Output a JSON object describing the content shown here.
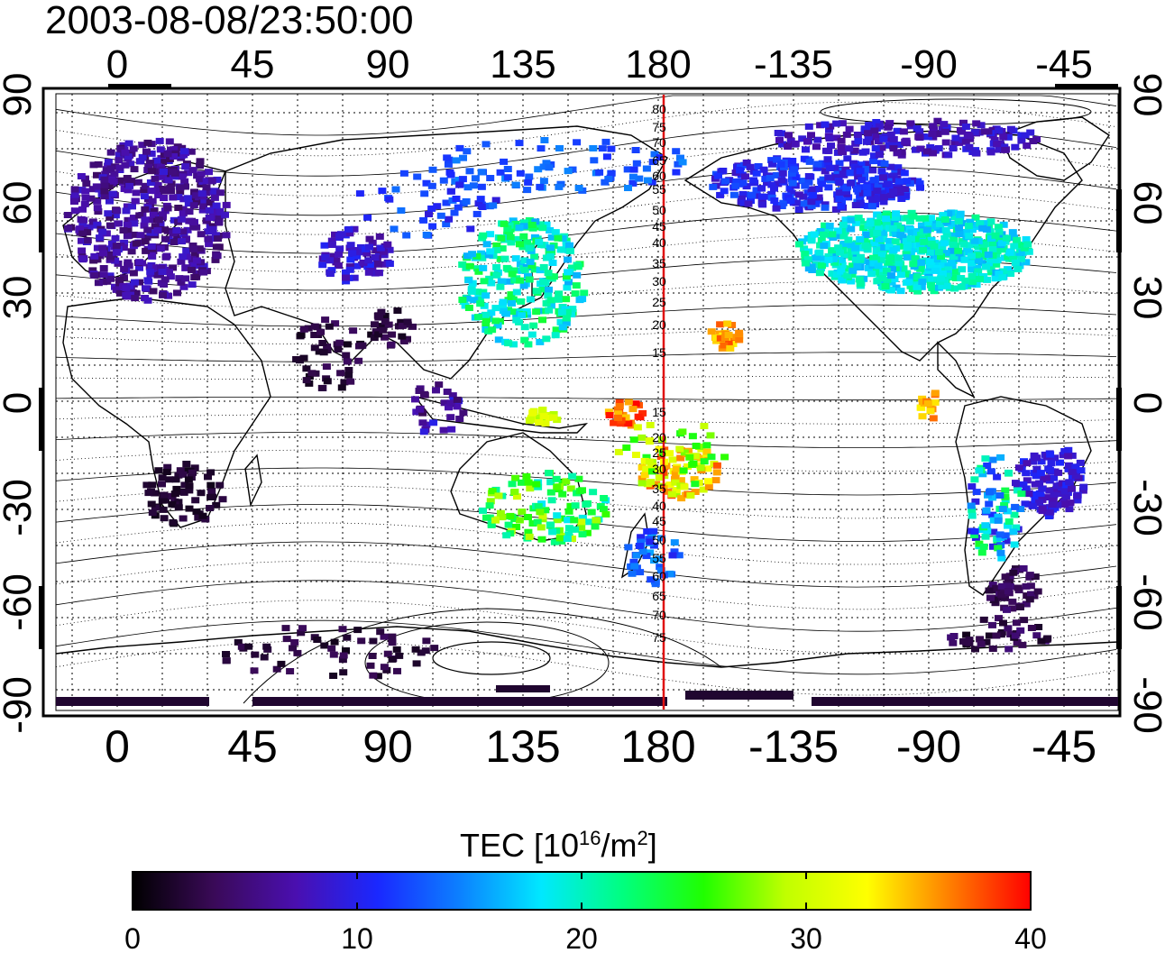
{
  "timestamp": "2003-08-08/23:50:00",
  "map": {
    "top_axis_labels": [
      "0",
      "45",
      "90",
      "135",
      "180",
      "-135",
      "-90",
      "-45"
    ],
    "bottom_axis_labels": [
      "0",
      "45",
      "90",
      "135",
      "180",
      "-135",
      "-90",
      "-45"
    ],
    "left_axis_labels": [
      "90",
      "60",
      "30",
      "0",
      "-30",
      "-60",
      "-90"
    ],
    "right_axis_labels": [
      "90",
      "60",
      "30",
      "0",
      "-30",
      "-60",
      "-90"
    ],
    "dateline_color": "#e01010",
    "dateline_contour_labels": [
      "80",
      "75",
      "70",
      "65",
      "60",
      "55",
      "50",
      "45",
      "40",
      "35",
      "30",
      "25",
      "20",
      "15",
      "15",
      "20",
      "25",
      "30",
      "35",
      "40",
      "45",
      "50",
      "55",
      "60",
      "65",
      "70",
      "75"
    ],
    "coastline_color": "#000000",
    "grid_style": "dotted"
  },
  "colorbar": {
    "title_main": "TEC  [10",
    "title_exp1": "16",
    "title_mid": "/m",
    "title_exp2": "2",
    "title_end": "]",
    "tick_labels": [
      "0",
      "10",
      "20",
      "30",
      "40"
    ],
    "range": [
      0,
      40
    ],
    "colormap": [
      "#000000",
      "#3a0a58",
      "#4a0fb0",
      "#1a28ff",
      "#0c80ff",
      "#00e8ff",
      "#00ff80",
      "#20ff00",
      "#c0ff00",
      "#ffff00",
      "#ff8000",
      "#ff0000"
    ]
  }
}
